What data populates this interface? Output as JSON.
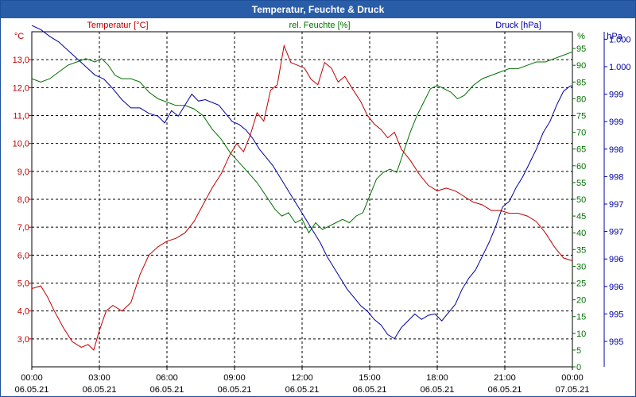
{
  "window": {
    "title": "Temperatur, Feuchte & Druck"
  },
  "colors": {
    "temperature": "#c00000",
    "humidity": "#007000",
    "pressure": "#0000a0",
    "title_bar": "#2a5da8",
    "grid": "#000000"
  },
  "chart_data": {
    "type": "line",
    "title": "Temperatur, Feuchte & Druck",
    "x_ticks": [
      {
        "time": "00:00",
        "date": "06.05.21"
      },
      {
        "time": "03:00",
        "date": "06.05.21"
      },
      {
        "time": "06:00",
        "date": "06.05.21"
      },
      {
        "time": "09:00",
        "date": "06.05.21"
      },
      {
        "time": "12:00",
        "date": "06.05.21"
      },
      {
        "time": "15:00",
        "date": "06.05.21"
      },
      {
        "time": "18:00",
        "date": "06.05.21"
      },
      {
        "time": "21:00",
        "date": "06.05.21"
      },
      {
        "time": "00:00",
        "date": "07.05.21"
      }
    ],
    "xlim": [
      0,
      24
    ],
    "axes": {
      "temperature": {
        "unit": "°C",
        "label": "Temperatur [°C]",
        "range": [
          2.0,
          14.0
        ],
        "tick_values": [
          3,
          4,
          5,
          6,
          7,
          8,
          9,
          10,
          11,
          12,
          13
        ],
        "tick_labels": [
          "3,0",
          "4,0",
          "5,0",
          "6,0",
          "7,0",
          "8,0",
          "9,0",
          "10,0",
          "11,0",
          "12,0",
          "13,0"
        ]
      },
      "humidity": {
        "unit": "%",
        "label": "rel. Feuchte [%]",
        "range": [
          0,
          100
        ],
        "tick_values": [
          0,
          5,
          10,
          15,
          20,
          25,
          30,
          35,
          40,
          45,
          50,
          55,
          60,
          65,
          70,
          75,
          80,
          85,
          90,
          95
        ],
        "tick_labels": [
          "0",
          "5",
          "10",
          "15",
          "20",
          "25",
          "30",
          "35",
          "40",
          "45",
          "50",
          "55",
          "60",
          "65",
          "70",
          "75",
          "80",
          "85",
          "90",
          "95"
        ]
      },
      "pressure": {
        "unit": "hPa",
        "label": "Druck [hPa]",
        "tick_values": [
          0,
          1,
          2,
          3,
          4,
          5,
          6,
          7,
          8,
          9,
          10,
          11
        ],
        "tick_labels": [
          "995",
          "995",
          "996",
          "996",
          "997",
          "997",
          "998",
          "998",
          "999",
          "999",
          "1.000",
          "1.000"
        ]
      }
    },
    "series": [
      {
        "name": "Temperatur",
        "axis": "temperature",
        "points": [
          [
            0,
            4.8
          ],
          [
            0.4,
            4.9
          ],
          [
            0.7,
            4.5
          ],
          [
            1.0,
            4.0
          ],
          [
            1.4,
            3.4
          ],
          [
            1.8,
            2.9
          ],
          [
            2.2,
            2.7
          ],
          [
            2.5,
            2.8
          ],
          [
            2.75,
            2.6
          ],
          [
            3.0,
            3.3
          ],
          [
            3.3,
            4.0
          ],
          [
            3.6,
            4.2
          ],
          [
            4.0,
            4.0
          ],
          [
            4.4,
            4.3
          ],
          [
            4.8,
            5.3
          ],
          [
            5.2,
            6.0
          ],
          [
            5.6,
            6.3
          ],
          [
            6.0,
            6.5
          ],
          [
            6.4,
            6.6
          ],
          [
            6.8,
            6.8
          ],
          [
            7.2,
            7.2
          ],
          [
            7.6,
            7.8
          ],
          [
            8.0,
            8.4
          ],
          [
            8.4,
            8.9
          ],
          [
            8.8,
            9.6
          ],
          [
            9.1,
            10.0
          ],
          [
            9.4,
            9.7
          ],
          [
            9.7,
            10.3
          ],
          [
            10.0,
            11.1
          ],
          [
            10.3,
            10.8
          ],
          [
            10.6,
            11.9
          ],
          [
            10.9,
            12.1
          ],
          [
            11.2,
            13.5
          ],
          [
            11.5,
            12.9
          ],
          [
            11.8,
            12.8
          ],
          [
            12.1,
            12.7
          ],
          [
            12.4,
            12.3
          ],
          [
            12.7,
            12.1
          ],
          [
            13.0,
            12.9
          ],
          [
            13.3,
            12.7
          ],
          [
            13.6,
            12.2
          ],
          [
            13.9,
            12.4
          ],
          [
            14.2,
            12.0
          ],
          [
            14.6,
            11.5
          ],
          [
            14.9,
            11.0
          ],
          [
            15.2,
            10.7
          ],
          [
            15.5,
            10.5
          ],
          [
            15.8,
            10.2
          ],
          [
            16.1,
            10.4
          ],
          [
            16.4,
            9.8
          ],
          [
            16.8,
            9.4
          ],
          [
            17.2,
            8.9
          ],
          [
            17.6,
            8.5
          ],
          [
            18.0,
            8.3
          ],
          [
            18.4,
            8.4
          ],
          [
            18.8,
            8.3
          ],
          [
            19.2,
            8.1
          ],
          [
            19.6,
            7.9
          ],
          [
            20.0,
            7.8
          ],
          [
            20.4,
            7.6
          ],
          [
            20.8,
            7.6
          ],
          [
            21.2,
            7.5
          ],
          [
            21.6,
            7.5
          ],
          [
            22.0,
            7.4
          ],
          [
            22.4,
            7.2
          ],
          [
            22.8,
            6.8
          ],
          [
            23.2,
            6.3
          ],
          [
            23.6,
            5.9
          ],
          [
            24.0,
            5.8
          ]
        ]
      },
      {
        "name": "rel. Feuchte",
        "axis": "humidity",
        "points": [
          [
            0,
            86
          ],
          [
            0.4,
            85
          ],
          [
            0.8,
            86
          ],
          [
            1.2,
            88
          ],
          [
            1.6,
            90
          ],
          [
            2.0,
            91
          ],
          [
            2.4,
            92
          ],
          [
            2.8,
            91
          ],
          [
            3.1,
            92
          ],
          [
            3.4,
            90
          ],
          [
            3.7,
            87
          ],
          [
            4.0,
            86
          ],
          [
            4.4,
            86
          ],
          [
            4.8,
            85
          ],
          [
            5.2,
            82
          ],
          [
            5.6,
            80
          ],
          [
            6.0,
            79
          ],
          [
            6.4,
            78
          ],
          [
            6.8,
            78
          ],
          [
            7.2,
            77
          ],
          [
            7.6,
            75
          ],
          [
            8.0,
            71
          ],
          [
            8.4,
            68
          ],
          [
            8.8,
            64
          ],
          [
            9.2,
            61
          ],
          [
            9.6,
            58
          ],
          [
            10.0,
            55
          ],
          [
            10.4,
            51
          ],
          [
            10.8,
            47
          ],
          [
            11.1,
            45
          ],
          [
            11.4,
            46
          ],
          [
            11.7,
            43
          ],
          [
            12.0,
            44
          ],
          [
            12.3,
            40
          ],
          [
            12.6,
            43
          ],
          [
            12.9,
            41
          ],
          [
            13.2,
            42
          ],
          [
            13.5,
            43
          ],
          [
            13.8,
            44
          ],
          [
            14.1,
            43
          ],
          [
            14.4,
            45
          ],
          [
            14.7,
            46
          ],
          [
            15.0,
            51
          ],
          [
            15.3,
            56
          ],
          [
            15.6,
            58
          ],
          [
            15.9,
            59
          ],
          [
            16.2,
            58
          ],
          [
            16.5,
            64
          ],
          [
            16.8,
            70
          ],
          [
            17.1,
            75
          ],
          [
            17.4,
            79
          ],
          [
            17.7,
            83
          ],
          [
            18.0,
            84
          ],
          [
            18.3,
            83
          ],
          [
            18.6,
            82
          ],
          [
            18.9,
            80
          ],
          [
            19.2,
            81
          ],
          [
            19.6,
            84
          ],
          [
            20.0,
            86
          ],
          [
            20.4,
            87
          ],
          [
            20.8,
            88
          ],
          [
            21.2,
            89
          ],
          [
            21.6,
            89
          ],
          [
            22.0,
            90
          ],
          [
            22.4,
            91
          ],
          [
            22.8,
            91
          ],
          [
            23.2,
            92
          ],
          [
            23.6,
            93
          ],
          [
            24.0,
            94
          ]
        ]
      },
      {
        "name": "Druck",
        "axis": "pressure",
        "points": [
          [
            0,
            11.5
          ],
          [
            0.4,
            11.35
          ],
          [
            0.8,
            11.1
          ],
          [
            1.2,
            10.9
          ],
          [
            1.6,
            10.6
          ],
          [
            2.0,
            10.3
          ],
          [
            2.4,
            10.0
          ],
          [
            2.8,
            9.7
          ],
          [
            3.2,
            9.55
          ],
          [
            3.6,
            9.2
          ],
          [
            4.0,
            8.8
          ],
          [
            4.4,
            8.5
          ],
          [
            4.8,
            8.5
          ],
          [
            5.2,
            8.3
          ],
          [
            5.6,
            8.2
          ],
          [
            5.9,
            7.95
          ],
          [
            6.2,
            8.4
          ],
          [
            6.5,
            8.2
          ],
          [
            6.8,
            8.6
          ],
          [
            7.1,
            9.0
          ],
          [
            7.4,
            8.75
          ],
          [
            7.7,
            8.8
          ],
          [
            8.0,
            8.7
          ],
          [
            8.3,
            8.6
          ],
          [
            8.6,
            8.3
          ],
          [
            8.9,
            8.0
          ],
          [
            9.2,
            7.9
          ],
          [
            9.5,
            7.7
          ],
          [
            9.8,
            7.4
          ],
          [
            10.1,
            7.0
          ],
          [
            10.4,
            6.7
          ],
          [
            10.7,
            6.4
          ],
          [
            11.0,
            6.0
          ],
          [
            11.3,
            5.6
          ],
          [
            11.6,
            5.2
          ],
          [
            11.9,
            4.8
          ],
          [
            12.2,
            4.4
          ],
          [
            12.5,
            4.0
          ],
          [
            12.8,
            3.6
          ],
          [
            13.1,
            3.1
          ],
          [
            13.4,
            2.7
          ],
          [
            13.7,
            2.3
          ],
          [
            14.0,
            1.9
          ],
          [
            14.3,
            1.6
          ],
          [
            14.6,
            1.3
          ],
          [
            14.9,
            1.1
          ],
          [
            15.2,
            0.8
          ],
          [
            15.5,
            0.6
          ],
          [
            15.8,
            0.25
          ],
          [
            16.1,
            0.1
          ],
          [
            16.4,
            0.5
          ],
          [
            16.7,
            0.75
          ],
          [
            17.0,
            1.0
          ],
          [
            17.3,
            0.8
          ],
          [
            17.6,
            0.95
          ],
          [
            17.9,
            1.0
          ],
          [
            18.2,
            0.75
          ],
          [
            18.5,
            1.05
          ],
          [
            18.8,
            1.35
          ],
          [
            19.1,
            1.9
          ],
          [
            19.4,
            2.3
          ],
          [
            19.7,
            2.6
          ],
          [
            20.0,
            3.1
          ],
          [
            20.3,
            3.6
          ],
          [
            20.6,
            4.2
          ],
          [
            20.9,
            4.9
          ],
          [
            21.2,
            5.1
          ],
          [
            21.5,
            5.6
          ],
          [
            21.8,
            6.0
          ],
          [
            22.1,
            6.5
          ],
          [
            22.4,
            7.0
          ],
          [
            22.7,
            7.6
          ],
          [
            23.0,
            8.0
          ],
          [
            23.3,
            8.6
          ],
          [
            23.6,
            9.1
          ],
          [
            23.9,
            9.3
          ],
          [
            24.0,
            9.3
          ]
        ]
      }
    ]
  }
}
